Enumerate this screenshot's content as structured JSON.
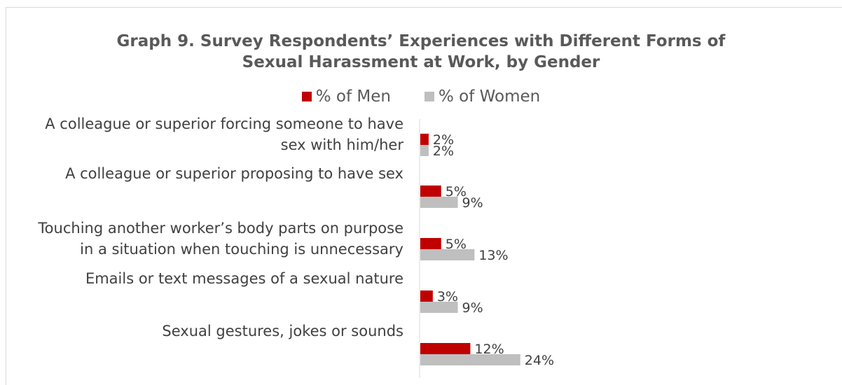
{
  "chart_data": {
    "type": "bar",
    "orientation": "horizontal",
    "title_lines": [
      "Graph 9. Survey Respondents’ Experiences with Different Forms of",
      "Sexual Harassment at Work, by Gender"
    ],
    "categories": [
      [
        "A colleague or superior forcing someone to have",
        "sex with him/her"
      ],
      [
        "A colleague or superior proposing to have sex"
      ],
      [
        "Touching another worker’s body parts on purpose",
        "in a situation when touching is unnecessary"
      ],
      [
        "Emails or text messages of a sexual nature"
      ],
      [
        "Sexual gestures, jokes or sounds"
      ]
    ],
    "series": [
      {
        "name": "% of Men",
        "color": "#c00000",
        "values": [
          2,
          5,
          5,
          3,
          12
        ],
        "labels": [
          "2%",
          "5%",
          "5%",
          "3%",
          "12%"
        ]
      },
      {
        "name": "% of Women",
        "color": "#bfbfbf",
        "values": [
          2,
          9,
          13,
          9,
          24
        ],
        "labels": [
          "2%",
          "9%",
          "13%",
          "9%",
          "24%"
        ]
      }
    ],
    "xlim": [
      0,
      100
    ],
    "legend_position": "top",
    "grid": false
  }
}
